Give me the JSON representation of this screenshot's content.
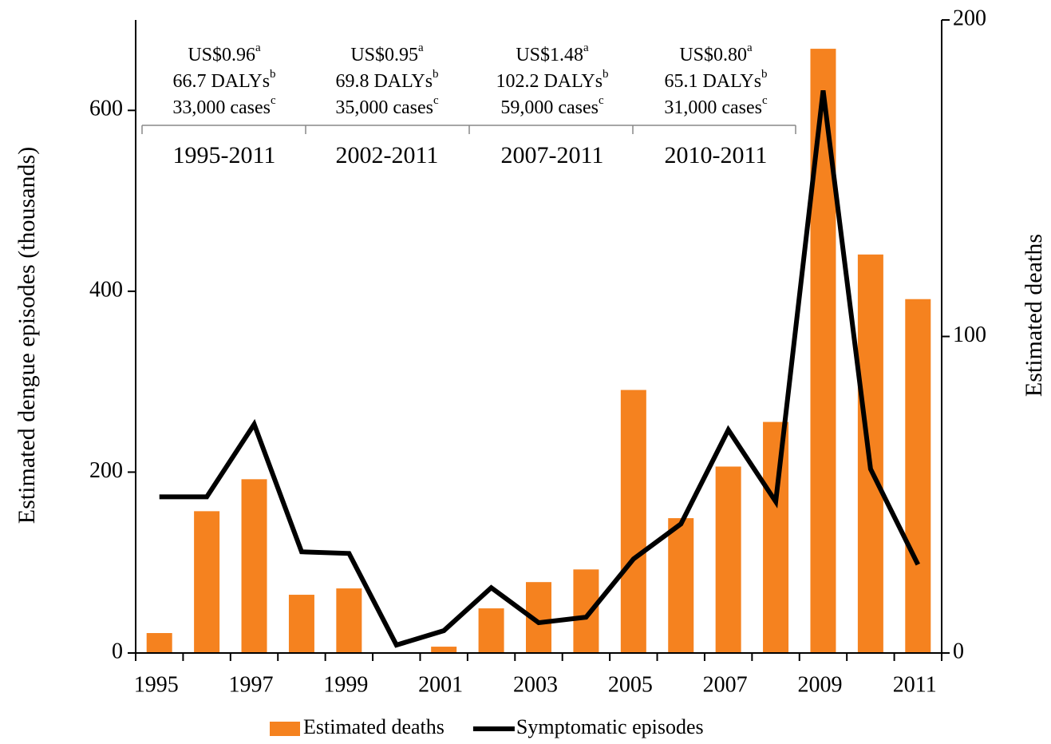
{
  "chart_data": {
    "type": "combo",
    "categories": [
      "1995",
      null,
      "1997",
      null,
      "1999",
      null,
      "2001",
      null,
      "2003",
      null,
      "2005",
      null,
      "2007",
      null,
      "2009",
      null,
      "2011"
    ],
    "series": [
      {
        "name": "Estimated deaths",
        "type": "bar",
        "axis": "y2",
        "color": "#f5821f",
        "values": [
          6.3,
          44.8,
          54.9,
          18.4,
          20.4,
          0,
          2.0,
          14.1,
          22.4,
          26.4,
          83.1,
          42.6,
          58.9,
          73.0,
          190.9,
          125.9,
          111.8
        ]
      },
      {
        "name": "Symptomatic episodes",
        "type": "line",
        "color": "#000000",
        "values": [
          172.7,
          172.7,
          252.9,
          111.9,
          110.1,
          8.8,
          24.7,
          72.2,
          33.5,
          39.6,
          104.0,
          142.7,
          246.7,
          167.4,
          622.0,
          203.5,
          97.8
        ]
      }
    ],
    "ylabel": "Estimated dengue episodes (thousands)",
    "y2label": "Estimated deaths",
    "ylim": [
      0,
      700
    ],
    "yticks": [
      0,
      200,
      400,
      600
    ],
    "y2lim": [
      0,
      200
    ],
    "y2ticks": [
      0,
      100,
      200
    ],
    "legend": "bottom",
    "annotations": [
      {
        "cost": "US$0.96",
        "cost_sup": "a",
        "dalys": "66.7 DALYs",
        "dalys_sup": "b",
        "cases": "33,000 cases",
        "cases_sup": "c",
        "period": "1995-2011"
      },
      {
        "cost": "US$0.95",
        "cost_sup": "a",
        "dalys": "69.8 DALYs",
        "dalys_sup": "b",
        "cases": "35,000 cases",
        "cases_sup": "c",
        "period": "2002-2011"
      },
      {
        "cost": "US$1.48",
        "cost_sup": "a",
        "dalys": "102.2 DALYs",
        "dalys_sup": "b",
        "cases": "59,000 cases",
        "cases_sup": "c",
        "period": "2007-2011"
      },
      {
        "cost": "US$0.80",
        "cost_sup": "a",
        "dalys": "65.1 DALYs",
        "dalys_sup": "b",
        "cases": "31,000 cases",
        "cases_sup": "c",
        "period": "2010-2011"
      }
    ]
  }
}
